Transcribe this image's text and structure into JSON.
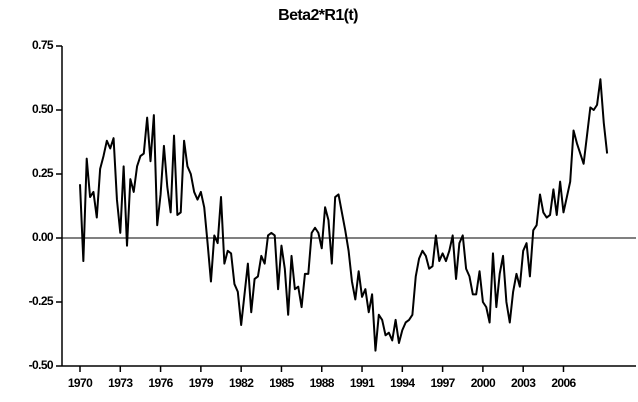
{
  "chart_data": {
    "type": "line",
    "title": "Beta2*R1(t)",
    "x": [
      1970,
      1970.25,
      1970.5,
      1970.75,
      1971,
      1971.25,
      1971.5,
      1971.75,
      1972,
      1972.25,
      1972.5,
      1972.75,
      1973,
      1973.25,
      1973.5,
      1973.75,
      1974,
      1974.25,
      1974.5,
      1974.75,
      1975,
      1975.25,
      1975.5,
      1975.75,
      1976,
      1976.25,
      1976.5,
      1976.75,
      1977,
      1977.25,
      1977.5,
      1977.75,
      1978,
      1978.25,
      1978.5,
      1978.75,
      1979,
      1979.25,
      1979.5,
      1979.75,
      1980,
      1980.25,
      1980.5,
      1980.75,
      1981,
      1981.25,
      1981.5,
      1981.75,
      1982,
      1982.25,
      1982.5,
      1982.75,
      1983,
      1983.25,
      1983.5,
      1983.75,
      1984,
      1984.25,
      1984.5,
      1984.75,
      1985,
      1985.25,
      1985.5,
      1985.75,
      1986,
      1986.25,
      1986.5,
      1986.75,
      1987,
      1987.25,
      1987.5,
      1987.75,
      1988,
      1988.25,
      1988.5,
      1988.75,
      1989,
      1989.25,
      1989.5,
      1989.75,
      1990,
      1990.25,
      1990.5,
      1990.75,
      1991,
      1991.25,
      1991.5,
      1991.75,
      1992,
      1992.25,
      1992.5,
      1992.75,
      1993,
      1993.25,
      1993.5,
      1993.75,
      1994,
      1994.25,
      1994.5,
      1994.75,
      1995,
      1995.25,
      1995.5,
      1995.75,
      1996,
      1996.25,
      1996.5,
      1996.75,
      1997,
      1997.25,
      1997.5,
      1997.75,
      1998,
      1998.25,
      1998.5,
      1998.75,
      1999,
      1999.25,
      1999.5,
      1999.75,
      2000,
      2000.25,
      2000.5,
      2000.75,
      2001,
      2001.25,
      2001.5,
      2001.75,
      2002,
      2002.25,
      2002.5,
      2002.75,
      2003,
      2003.25,
      2003.5,
      2003.75,
      2004,
      2004.25,
      2004.5,
      2004.75,
      2005,
      2005.25,
      2005.5,
      2005.75,
      2006,
      2006.25,
      2006.5,
      2006.75,
      2007,
      2007.25,
      2007.5,
      2007.75,
      2008,
      2008.25,
      2008.5,
      2008.75,
      2009,
      2009.25
    ],
    "values": [
      0.21,
      -0.09,
      0.31,
      0.16,
      0.18,
      0.08,
      0.27,
      0.32,
      0.38,
      0.35,
      0.39,
      0.15,
      0.02,
      0.28,
      -0.03,
      0.23,
      0.18,
      0.28,
      0.32,
      0.33,
      0.47,
      0.3,
      0.48,
      0.05,
      0.17,
      0.36,
      0.2,
      0.1,
      0.4,
      0.09,
      0.1,
      0.38,
      0.28,
      0.25,
      0.18,
      0.15,
      0.18,
      0.12,
      -0.02,
      -0.17,
      0.01,
      -0.02,
      0.16,
      -0.1,
      -0.05,
      -0.06,
      -0.18,
      -0.21,
      -0.34,
      -0.22,
      -0.1,
      -0.29,
      -0.16,
      -0.15,
      -0.07,
      -0.1,
      0.01,
      0.02,
      0.01,
      -0.2,
      -0.03,
      -0.12,
      -0.3,
      -0.07,
      -0.2,
      -0.19,
      -0.27,
      -0.14,
      -0.14,
      0.02,
      0.04,
      0.02,
      -0.04,
      0.12,
      0.07,
      -0.1,
      0.16,
      0.17,
      0.1,
      0.03,
      -0.05,
      -0.17,
      -0.24,
      -0.13,
      -0.23,
      -0.2,
      -0.29,
      -0.22,
      -0.44,
      -0.3,
      -0.32,
      -0.38,
      -0.37,
      -0.4,
      -0.32,
      -0.41,
      -0.36,
      -0.33,
      -0.32,
      -0.3,
      -0.15,
      -0.08,
      -0.05,
      -0.07,
      -0.12,
      -0.11,
      0.01,
      -0.09,
      -0.06,
      -0.09,
      -0.05,
      0.01,
      -0.16,
      -0.02,
      0.01,
      -0.12,
      -0.15,
      -0.22,
      -0.22,
      -0.13,
      -0.25,
      -0.27,
      -0.33,
      -0.06,
      -0.27,
      -0.14,
      -0.07,
      -0.25,
      -0.33,
      -0.21,
      -0.14,
      -0.19,
      -0.05,
      -0.02,
      -0.15,
      0.03,
      0.05,
      0.17,
      0.1,
      0.08,
      0.09,
      0.19,
      0.09,
      0.22,
      0.1,
      0.16,
      0.22,
      0.42,
      0.37,
      0.33,
      0.29,
      0.4,
      0.51,
      0.5,
      0.52,
      0.62,
      0.45,
      0.33
    ],
    "color": "#000000",
    "xlim": [
      1968.66,
      2011.4
    ],
    "xticks": [
      1970,
      1973,
      1976,
      1979,
      1982,
      1985,
      1988,
      1991,
      1994,
      1997,
      2000,
      2003,
      2006
    ],
    "ylim": [
      -0.5,
      0.75
    ],
    "yticks": [
      0.75,
      {
        "value": 0.5,
        "label": "0.50"
      },
      0.25,
      {
        "value": 0,
        "label": "0.00"
      },
      -0.25,
      {
        "value": -0.5,
        "label": "-0.50"
      }
    ]
  }
}
